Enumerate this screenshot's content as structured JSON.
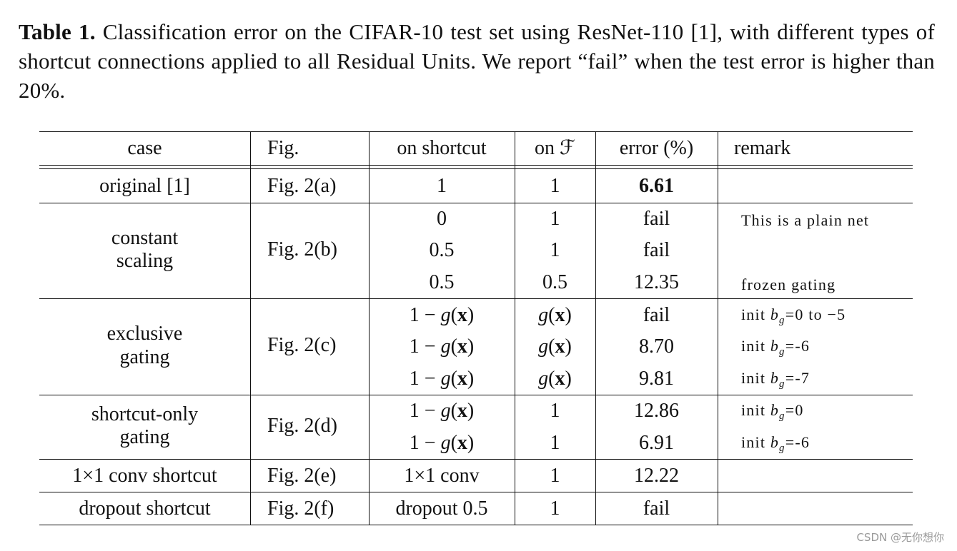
{
  "caption": {
    "label": "Table 1.",
    "text": "Classification error on the CIFAR-10 test set using ResNet-110 [1], with different types of shortcut connections applied to all Residual Units. We report “fail” when the test error is higher than 20%."
  },
  "table": {
    "headers": {
      "case": "case",
      "fig": "Fig.",
      "shortcut": "on shortcut",
      "onF": "on ℱ",
      "error": "error (%)",
      "remark": "remark"
    },
    "groups": [
      {
        "case_lines": [
          "original [1]"
        ],
        "fig": "Fig. 2(a)"
      },
      {
        "case_lines": [
          "constant",
          "scaling"
        ],
        "fig": "Fig. 2(b)"
      },
      {
        "case_lines": [
          "exclusive",
          "gating"
        ],
        "fig": "Fig. 2(c)"
      },
      {
        "case_lines": [
          "shortcut-only",
          "gating"
        ],
        "fig": "Fig. 2(d)"
      },
      {
        "case_lines": [
          "1×1 conv shortcut"
        ],
        "fig": "Fig. 2(e)"
      },
      {
        "case_lines": [
          "dropout shortcut"
        ],
        "fig": "Fig. 2(f)"
      }
    ],
    "rows": [
      {
        "shortcut": "1",
        "onF": "1",
        "error": "6.61",
        "remark": ""
      },
      {
        "shortcut": "0",
        "onF": "1",
        "error": "fail",
        "remark": "This is a plain net"
      },
      {
        "shortcut": "0.5",
        "onF": "1",
        "error": "fail",
        "remark": ""
      },
      {
        "shortcut": "0.5",
        "onF": "0.5",
        "error": "12.35",
        "remark": "frozen gating"
      },
      {
        "shortcut": "1 − g(x)",
        "onF": "g(x)",
        "error": "fail",
        "remark": "init b_g=0 to −5"
      },
      {
        "shortcut": "1 − g(x)",
        "onF": "g(x)",
        "error": "8.70",
        "remark": "init b_g=-6"
      },
      {
        "shortcut": "1 − g(x)",
        "onF": "g(x)",
        "error": "9.81",
        "remark": "init b_g=-7"
      },
      {
        "shortcut": "1 − g(x)",
        "onF": "1",
        "error": "12.86",
        "remark": "init b_g=0"
      },
      {
        "shortcut": "1 − g(x)",
        "onF": "1",
        "error": "6.91",
        "remark": "init b_g=-6"
      },
      {
        "shortcut": "1×1 conv",
        "onF": "1",
        "error": "12.22",
        "remark": ""
      },
      {
        "shortcut": "dropout 0.5",
        "onF": "1",
        "error": "fail",
        "remark": ""
      }
    ],
    "remark_parts": {
      "init": "init",
      "b": "b",
      "g": "g",
      "v0to5": "=0 to −5",
      "vm6": "=-6",
      "vm7": "=-7",
      "v0": "=0"
    },
    "math": {
      "one_minus": "1 − ",
      "g": "g",
      "open": "(",
      "x": "x",
      "close": ")",
      "calF": "ℱ"
    }
  },
  "watermark": "CSDN @无你想你"
}
